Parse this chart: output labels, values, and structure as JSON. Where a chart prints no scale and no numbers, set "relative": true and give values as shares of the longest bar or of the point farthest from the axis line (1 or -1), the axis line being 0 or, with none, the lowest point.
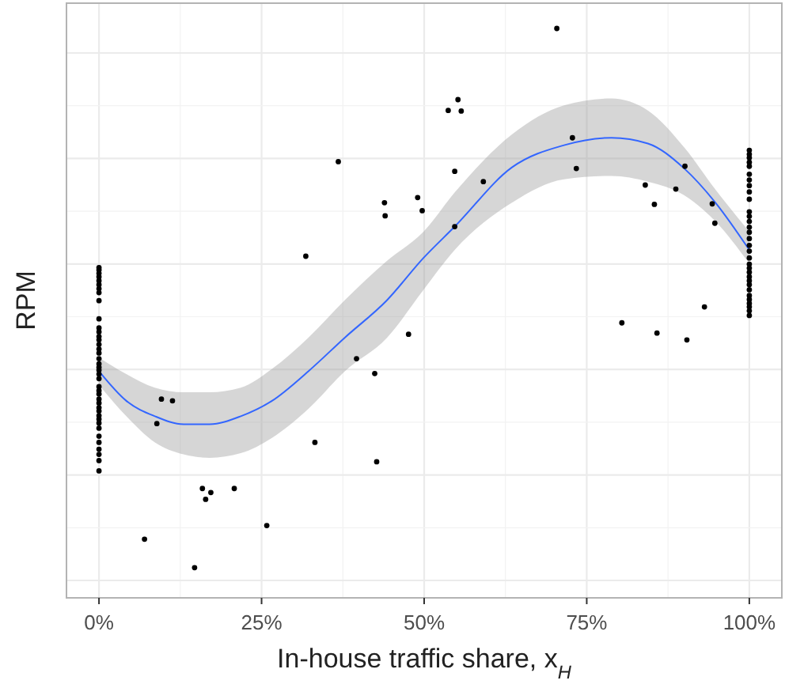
{
  "chart_data": {
    "type": "scatter",
    "relative": true,
    "xlabel": "In-house traffic share, x$_{H}$",
    "ylabel": "RPM",
    "xlim": [
      -5,
      105
    ],
    "xticks": [
      {
        "value": 0,
        "label": "0%"
      },
      {
        "value": 25,
        "label": "25%"
      },
      {
        "value": 50,
        "label": "50%"
      },
      {
        "value": 75,
        "label": "75%"
      },
      {
        "value": 100,
        "label": "100%"
      }
    ],
    "tick_labels": "x",
    "grid": true,
    "series": [
      {
        "type": "line",
        "color": "#3366ff",
        "marker": "none",
        "x": [
          0,
          4.2,
          8.6,
          13,
          17,
          21.8,
          26.6,
          32.2,
          37.8,
          44.3,
          49.9,
          54.7,
          63.5,
          71.5,
          78.8,
          84.4,
          90,
          94.8,
          100
        ],
        "values": [
          0.398,
          0.346,
          0.319,
          0.305,
          0.305,
          0.319,
          0.346,
          0.398,
          0.457,
          0.523,
          0.597,
          0.652,
          0.756,
          0.795,
          0.808,
          0.798,
          0.754,
          0.694,
          0.611
        ],
        "upper": [
          0.422,
          0.393,
          0.369,
          0.361,
          0.361,
          0.369,
          0.402,
          0.457,
          0.523,
          0.592,
          0.643,
          0.712,
          0.814,
          0.865,
          0.877,
          0.856,
          0.791,
          0.717,
          0.643
        ],
        "lower": [
          0.374,
          0.319,
          0.273,
          0.252,
          0.246,
          0.254,
          0.281,
          0.332,
          0.398,
          0.457,
          0.541,
          0.611,
          0.694,
          0.735,
          0.741,
          0.731,
          0.707,
          0.661,
          0.587
        ]
      },
      {
        "color": "#000000",
        "marker": "circle",
        "x": [
          0,
          0,
          0,
          0,
          0,
          0,
          0,
          0,
          0,
          0,
          0,
          0,
          0,
          0,
          0,
          0,
          0,
          0,
          0,
          0,
          0,
          0,
          0,
          0,
          0,
          0,
          0,
          0,
          0,
          0,
          0,
          0,
          0,
          0,
          0,
          0,
          0,
          0,
          0,
          0,
          7.0,
          8.9,
          9.6,
          11.3,
          14.7,
          15.9,
          16.4,
          17.2,
          20.8,
          25.8,
          31.8,
          33.2,
          36.8,
          39.6,
          42.4,
          42.7,
          43.9,
          44.0,
          47.6,
          49.0,
          49.7,
          53.7,
          55.2,
          55.7,
          54.7,
          54.7,
          59.1,
          70.4,
          72.8,
          73.4,
          80.4,
          84.0,
          85.4,
          85.8,
          88.7,
          90.1,
          90.4,
          93.1,
          94.3,
          94.7,
          100,
          100,
          100,
          100,
          100,
          100,
          100,
          100,
          100,
          100,
          100,
          100,
          100,
          100,
          100,
          100,
          100,
          100,
          100,
          100,
          100,
          100,
          100,
          100,
          100,
          100,
          100,
          100,
          100,
          100,
          100,
          100
        ],
        "values": [
          0.58,
          0.576,
          0.57,
          0.564,
          0.557,
          0.55,
          0.543,
          0.536,
          0.522,
          0.49,
          0.474,
          0.467,
          0.459,
          0.453,
          0.445,
          0.437,
          0.43,
          0.42,
          0.411,
          0.405,
          0.4,
          0.393,
          0.385,
          0.371,
          0.364,
          0.358,
          0.349,
          0.342,
          0.334,
          0.328,
          0.32,
          0.314,
          0.307,
          0.298,
          0.284,
          0.273,
          0.261,
          0.252,
          0.241,
          0.223,
          0.103,
          0.306,
          0.349,
          0.346,
          0.053,
          0.192,
          0.173,
          0.185,
          0.192,
          0.127,
          0.6,
          0.273,
          0.766,
          0.42,
          0.394,
          0.239,
          0.694,
          0.671,
          0.463,
          0.703,
          0.68,
          0.856,
          0.875,
          0.855,
          0.749,
          0.652,
          0.731,
          1,
          0.808,
          0.754,
          0.483,
          0.725,
          0.691,
          0.465,
          0.718,
          0.758,
          0.453,
          0.511,
          0.692,
          0.658,
          0.786,
          0.779,
          0.773,
          0.765,
          0.758,
          0.744,
          0.734,
          0.724,
          0.713,
          0.7,
          0.678,
          0.67,
          0.661,
          0.651,
          0.642,
          0.631,
          0.619,
          0.609,
          0.597,
          0.586,
          0.579,
          0.572,
          0.564,
          0.557,
          0.55,
          0.541,
          0.531,
          0.524,
          0.517,
          0.511,
          0.504,
          0.496
        ]
      }
    ]
  }
}
